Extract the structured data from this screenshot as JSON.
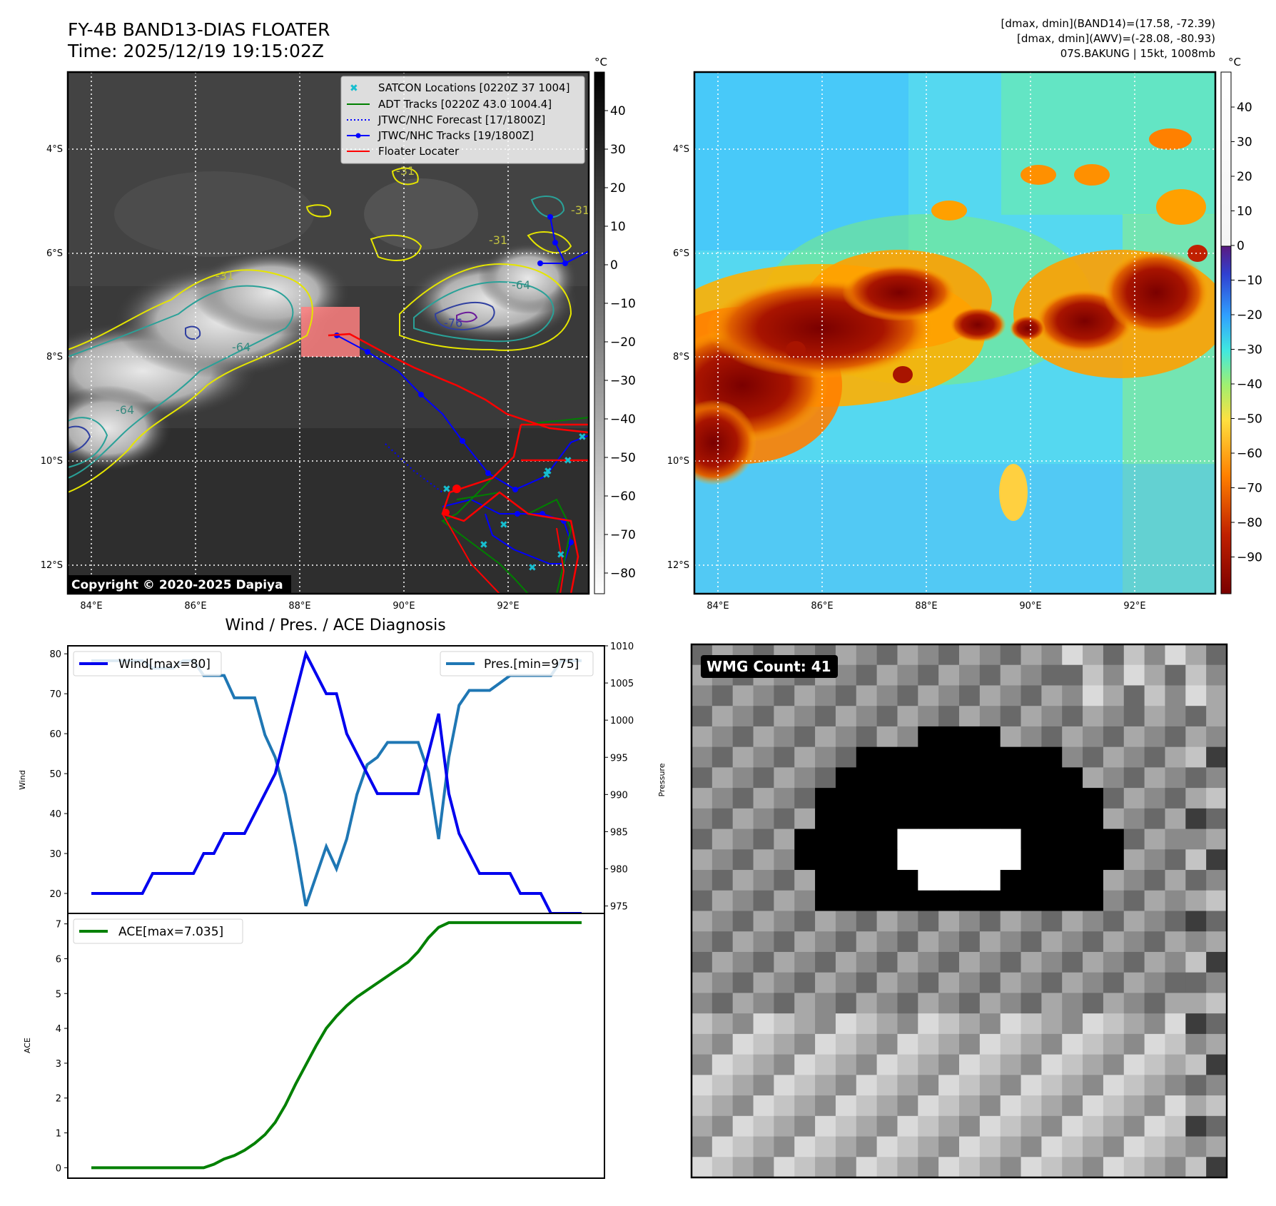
{
  "header": {
    "title": "FY-4B BAND13-DIAS FLOATER",
    "time": "Time: 2025/12/19 19:15:02Z",
    "dmax_band14": "[dmax, dmin](BAND14)=(17.58, -72.39)",
    "dmax_awv": "[dmax, dmin](AWV)=(-28.08, -80.93)",
    "storm": "07S.BAKUNG | 15kt, 1008mb"
  },
  "map_axes": {
    "x_ticks": [
      "84°E",
      "86°E",
      "88°E",
      "90°E",
      "92°E"
    ],
    "y_ticks": [
      "4°S",
      "6°S",
      "8°S",
      "10°S",
      "12°S"
    ]
  },
  "ir_panel": {
    "colorbar_unit": "°C",
    "colorbar_ticks": [
      "40",
      "30",
      "20",
      "10",
      "0",
      "−10",
      "−20",
      "−30",
      "−40",
      "−50",
      "−60",
      "−70",
      "−80"
    ],
    "contour_labels": [
      "-31",
      "-31",
      "-31",
      "-64",
      "-64",
      "-76",
      "-64",
      "-31"
    ],
    "legend": [
      {
        "label": "SATCON Locations [0220Z 37 1004]",
        "color": "#17becf",
        "style": "x-marker"
      },
      {
        "label": "ADT Tracks [0220Z 43.0 1004.4]",
        "color": "#008000",
        "style": "solid"
      },
      {
        "label": "JTWC/NHC Forecast [17/1800Z]",
        "color": "#0000ff",
        "style": "dotted"
      },
      {
        "label": "JTWC/NHC Tracks [19/1800Z]",
        "color": "#0000ff",
        "style": "line-dot"
      },
      {
        "label": "Floater Locater",
        "color": "#ff0000",
        "style": "solid"
      }
    ],
    "copyright": "Copyright © 2020-2025 Dapiya"
  },
  "awv_panel": {
    "colorbar_unit": "°C",
    "colorbar_ticks": [
      "40",
      "30",
      "20",
      "10",
      "0",
      "−10",
      "−20",
      "−30",
      "−40",
      "−50",
      "−60",
      "−70",
      "−80",
      "−90"
    ]
  },
  "diag": {
    "title": "Wind / Pres. / ACE Diagnosis",
    "wind_legend": "Wind[max=80]",
    "pres_legend": "Pres.[min=975]",
    "ace_legend": "ACE[max=7.035]",
    "wind_ylabel": "Wind",
    "pres_ylabel": "Pressure",
    "ace_ylabel": "ACE",
    "wind_ticks": [
      "80",
      "70",
      "60",
      "50",
      "40",
      "30",
      "20"
    ],
    "pres_ticks": [
      "1010",
      "1005",
      "1000",
      "995",
      "990",
      "985",
      "980",
      "975"
    ],
    "ace_ticks": [
      "7",
      "6",
      "5",
      "4",
      "3",
      "2",
      "1",
      "0"
    ],
    "colors": {
      "wind": "#0000ee",
      "pres": "#1f77b4",
      "ace": "#008000"
    }
  },
  "wmg": {
    "label": "WMG Count: 41"
  },
  "chart_data": [
    {
      "type": "line",
      "name": "wind",
      "x": [
        0,
        1,
        2,
        3,
        4,
        5,
        6,
        7,
        8,
        9,
        10,
        11,
        12,
        13,
        14,
        15,
        16,
        17,
        18,
        19,
        20,
        21,
        22,
        23,
        24,
        25,
        26,
        27,
        28,
        29,
        30,
        31,
        32,
        33,
        34,
        35,
        36,
        37,
        38,
        39,
        40,
        41,
        42,
        43,
        44,
        45,
        46,
        47,
        48
      ],
      "series": [
        {
          "name": "Wind[max=80]",
          "values": [
            20,
            20,
            20,
            20,
            20,
            20,
            25,
            25,
            25,
            25,
            25,
            30,
            30,
            35,
            35,
            35,
            40,
            45,
            50,
            60,
            70,
            80,
            75,
            70,
            70,
            60,
            55,
            50,
            45,
            45,
            45,
            45,
            45,
            55,
            65,
            45,
            35,
            30,
            25,
            25,
            25,
            25,
            20,
            20,
            20,
            15,
            15,
            15,
            15
          ]
        },
        {
          "name": "Pres.[min=975]",
          "values": [
            1008,
            1008,
            1008,
            1008,
            1008,
            1008,
            1007,
            1007,
            1007,
            1008,
            1008,
            1006,
            1006,
            1006,
            1003,
            1003,
            1003,
            998,
            995,
            990,
            983,
            975,
            979,
            983,
            980,
            984,
            990,
            994,
            995,
            997,
            997,
            997,
            997,
            993,
            984,
            995,
            1002,
            1004,
            1004,
            1004,
            1005,
            1006,
            1006,
            1006,
            1006,
            1006,
            1008,
            1008,
            1008
          ]
        }
      ],
      "ylim_wind": [
        15,
        82
      ],
      "ylim_pres": [
        974,
        1010
      ]
    },
    {
      "type": "line",
      "name": "ace",
      "x": [
        0,
        1,
        2,
        3,
        4,
        5,
        6,
        7,
        8,
        9,
        10,
        11,
        12,
        13,
        14,
        15,
        16,
        17,
        18,
        19,
        20,
        21,
        22,
        23,
        24,
        25,
        26,
        27,
        28,
        29,
        30,
        31,
        32,
        33,
        34,
        35,
        36,
        37,
        38,
        39,
        40,
        41,
        42,
        43,
        44,
        45,
        46,
        47,
        48
      ],
      "series": [
        {
          "name": "ACE[max=7.035]",
          "values": [
            0,
            0,
            0,
            0,
            0,
            0,
            0,
            0,
            0,
            0,
            0,
            0,
            0.1,
            0.25,
            0.35,
            0.5,
            0.7,
            0.95,
            1.3,
            1.8,
            2.4,
            2.95,
            3.5,
            4.0,
            4.35,
            4.65,
            4.9,
            5.1,
            5.3,
            5.5,
            5.7,
            5.9,
            6.2,
            6.6,
            6.9,
            7.035,
            7.035,
            7.035,
            7.035,
            7.035,
            7.035,
            7.035,
            7.035,
            7.035,
            7.035,
            7.035,
            7.035,
            7.035,
            7.035
          ]
        }
      ],
      "ylim": [
        -0.3,
        7.3
      ]
    }
  ]
}
